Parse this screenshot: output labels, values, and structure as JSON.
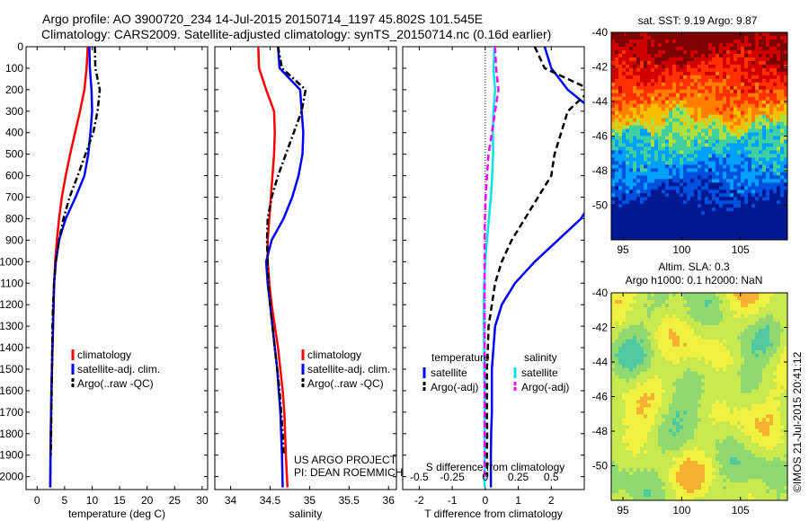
{
  "header": {
    "line1": "Argo profile: AO 3900720_234 14-Jul-2015 20150714_1197 45.802S 101.545E",
    "line2": "Climatology: CARS2009. Satellite-adjusted climatology: synTS_20150714.nc (0.16d earlier)"
  },
  "credit": {
    "line1": "US ARGO PROJECT",
    "line2": "PI: DEAN ROEMMICH"
  },
  "watermark": "©IMOS 21-Jul-2015 20:41:12",
  "colors": {
    "climatology": "#ff0000",
    "satellite": "#0000ff",
    "argo": "#000000",
    "sal_satellite": "#00e5e5",
    "sal_argo": "#ff00ff"
  },
  "chart_data": [
    {
      "type": "line",
      "xlabel": "temperature (deg C)",
      "ylabel": "",
      "xlim": [
        -2,
        31
      ],
      "ylim": [
        2060,
        0
      ],
      "xticks": [
        "0",
        "5",
        "10",
        "15",
        "20",
        "25",
        "30"
      ],
      "yticks": [
        "0",
        "100",
        "200",
        "300",
        "400",
        "500",
        "600",
        "700",
        "800",
        "900",
        "1000",
        "1100",
        "1200",
        "1300",
        "1400",
        "1500",
        "1600",
        "1700",
        "1800",
        "1900",
        "2000"
      ],
      "legend": {
        "placement": "bottom-right",
        "entries": [
          "climatology",
          "satellite-adj. clim.",
          "Argo(..raw -QC)"
        ]
      },
      "series": [
        {
          "name": "climatology",
          "color": "#ff0000",
          "style": "solid",
          "x": [
            9.2,
            9.0,
            8.6,
            7.8,
            6.9,
            6.0,
            5.2,
            4.5,
            4.0,
            3.6,
            3.3,
            3.1,
            3.0,
            2.9,
            2.8,
            2.7,
            2.6,
            2.55,
            2.5,
            2.45,
            2.4
          ],
          "y": [
            0,
            100,
            200,
            300,
            400,
            500,
            600,
            700,
            800,
            900,
            1000,
            1100,
            1200,
            1300,
            1400,
            1500,
            1600,
            1700,
            1800,
            1900,
            2050
          ]
        },
        {
          "name": "satellite-adj. clim.",
          "color": "#0000ff",
          "style": "solid",
          "x": [
            9.5,
            9.6,
            9.9,
            10.0,
            9.7,
            9.3,
            8.6,
            7.0,
            5.2,
            4.0,
            3.4,
            3.1,
            3.0,
            2.9,
            2.8,
            2.7,
            2.6,
            2.55,
            2.5,
            2.45,
            2.4
          ],
          "y": [
            0,
            100,
            200,
            300,
            400,
            500,
            600,
            700,
            800,
            900,
            1000,
            1100,
            1200,
            1300,
            1400,
            1500,
            1600,
            1700,
            1800,
            1900,
            2050
          ]
        },
        {
          "name": "Argo(..raw -QC)",
          "color": "#000000",
          "style": "dashdot",
          "x": [
            10.5,
            10.6,
            11.4,
            11.0,
            10.2,
            8.8,
            7.4,
            5.9,
            4.8,
            4.0,
            3.4,
            3.1,
            2.9,
            2.8,
            2.75,
            2.7,
            2.65,
            2.6,
            2.55,
            2.5
          ],
          "y": [
            0,
            100,
            200,
            300,
            400,
            500,
            600,
            700,
            800,
            900,
            1000,
            1100,
            1200,
            1300,
            1400,
            1500,
            1600,
            1700,
            1800,
            1900
          ]
        }
      ]
    },
    {
      "type": "line",
      "xlabel": "salinity",
      "ylabel": "",
      "xlim": [
        33.8,
        36.1
      ],
      "ylim": [
        2060,
        0
      ],
      "xticks": [
        "34",
        "34.5",
        "35",
        "35.5",
        "36"
      ],
      "legend": {
        "placement": "bottom-right",
        "entries": [
          "climatology",
          "satellite-adj. clim.",
          "Argo(..raw -QC)"
        ]
      },
      "series": [
        {
          "name": "climatology",
          "color": "#ff0000",
          "style": "solid",
          "x": [
            34.35,
            34.36,
            34.45,
            34.55,
            34.56,
            34.55,
            34.53,
            34.51,
            34.49,
            34.47,
            34.47,
            34.49,
            34.52,
            34.56,
            34.6,
            34.63,
            34.66,
            34.68,
            34.69,
            34.7,
            34.72
          ],
          "y": [
            0,
            100,
            200,
            300,
            400,
            500,
            600,
            700,
            800,
            900,
            1000,
            1100,
            1200,
            1300,
            1400,
            1500,
            1600,
            1700,
            1800,
            1900,
            2050
          ]
        },
        {
          "name": "satellite-adj. clim.",
          "color": "#0000ff",
          "style": "solid",
          "x": [
            34.6,
            34.62,
            34.88,
            34.9,
            34.92,
            34.91,
            34.86,
            34.78,
            34.67,
            34.52,
            34.45,
            34.47,
            34.5,
            34.53,
            34.56,
            34.59,
            34.61,
            34.63,
            34.64,
            34.65,
            34.66
          ],
          "y": [
            0,
            100,
            200,
            300,
            400,
            500,
            600,
            700,
            800,
            900,
            1000,
            1100,
            1200,
            1300,
            1400,
            1500,
            1600,
            1700,
            1800,
            1900,
            2050
          ]
        },
        {
          "name": "Argo(..raw -QC)",
          "color": "#000000",
          "style": "dashdot",
          "x": [
            34.6,
            34.65,
            34.95,
            34.9,
            34.8,
            34.7,
            34.6,
            34.52,
            34.47,
            34.46,
            34.47,
            34.48,
            34.5,
            34.53,
            34.56,
            34.59,
            34.62,
            34.64,
            34.66,
            34.67
          ],
          "y": [
            0,
            100,
            200,
            300,
            400,
            500,
            600,
            700,
            800,
            900,
            1000,
            1100,
            1200,
            1300,
            1400,
            1500,
            1600,
            1700,
            1800,
            1900
          ]
        }
      ]
    },
    {
      "type": "line",
      "xlabel": "T difference from climatology",
      "title": "S difference from climatology",
      "xlim": [
        -2.5,
        3.0
      ],
      "ylim": [
        2060,
        0
      ],
      "xticks": [
        "-2",
        "-1",
        "0",
        "1",
        "2"
      ],
      "xticks_top": [
        "-0.5",
        "-0.25",
        "0",
        "0.25",
        "0.5"
      ],
      "legend": {
        "placement": "bottom",
        "headers": [
          "temperature",
          "salinity"
        ],
        "entries": [
          "satellite",
          "Argo(-adj)",
          "satellite",
          "Argo(-adj)"
        ]
      },
      "series": [
        {
          "name": "temperature satellite",
          "color": "#0000ff",
          "style": "solid",
          "x": [
            1.8,
            2.0,
            2.5,
            3.3,
            4.0,
            4.3,
            3.8,
            3.3,
            2.9,
            2.2,
            1.5,
            0.9,
            0.5,
            0.3,
            0.25,
            0.2,
            0.2,
            0.2,
            0.18,
            0.17,
            0.17
          ],
          "y": [
            0,
            100,
            200,
            300,
            400,
            500,
            600,
            700,
            800,
            900,
            1000,
            1100,
            1200,
            1300,
            1400,
            1500,
            1600,
            1700,
            1800,
            1900,
            2050
          ]
        },
        {
          "name": "temperature Argo(-adj)",
          "color": "#000000",
          "style": "dashed",
          "x": [
            1.5,
            1.8,
            3.2,
            2.5,
            2.3,
            2.1,
            2.0,
            1.6,
            1.2,
            0.8,
            0.5,
            0.3,
            0.2,
            0.1,
            0.08,
            0.05,
            0.05,
            0.05,
            0.06,
            0.05,
            0.06
          ],
          "y": [
            0,
            100,
            200,
            300,
            400,
            500,
            600,
            700,
            800,
            900,
            1000,
            1100,
            1200,
            1300,
            1400,
            1500,
            1600,
            1700,
            1800,
            1900,
            2000
          ]
        },
        {
          "name": "salinity satellite",
          "color": "#00e5e5",
          "style": "solid",
          "x": [
            0.28,
            0.25,
            0.3,
            0.25,
            0.23,
            0.24,
            0.21,
            0.17,
            0.11,
            0.05,
            0.0,
            -0.03,
            -0.04,
            -0.04,
            -0.03,
            -0.03,
            -0.02,
            -0.02,
            -0.02,
            -0.02,
            -0.02
          ],
          "y": [
            0,
            100,
            200,
            300,
            400,
            500,
            600,
            700,
            800,
            900,
            1000,
            1100,
            1200,
            1300,
            1400,
            1500,
            1600,
            1700,
            1800,
            1900,
            2050
          ]
        },
        {
          "name": "salinity Argo(-adj)",
          "color": "#ff00ff",
          "style": "dashed",
          "x": [
            0.3,
            0.33,
            0.4,
            0.3,
            0.2,
            0.1,
            0.05,
            0.01,
            -0.01,
            -0.02,
            -0.02,
            -0.02,
            -0.02,
            -0.02,
            -0.02,
            -0.02,
            -0.02,
            -0.02,
            -0.02,
            -0.02,
            -0.02
          ],
          "y": [
            0,
            100,
            200,
            300,
            400,
            500,
            600,
            700,
            800,
            900,
            1000,
            1100,
            1200,
            1300,
            1400,
            1500,
            1600,
            1700,
            1800,
            1900,
            2000
          ]
        }
      ]
    },
    {
      "type": "heatmap",
      "title": "sat. SST: 9.19 Argo: 9.87",
      "xlim": [
        94,
        109
      ],
      "ylim": [
        -52,
        -40
      ],
      "xticks": [
        "95",
        "100",
        "105"
      ],
      "yticks": [
        "-40",
        "-42",
        "-44",
        "-46",
        "-48",
        "-50"
      ],
      "colors": [
        "#7f0000",
        "#d00000",
        "#ff3000",
        "#ff8000",
        "#f5c000",
        "#b0e040",
        "#40d0a0",
        "#00a0ff",
        "#0050e0",
        "#001890"
      ],
      "marker": {
        "x": 101.545,
        "y": -45.802
      }
    },
    {
      "type": "heatmap",
      "title": "Altim. SLA: 0.3",
      "subtitle": "Argo h1000: 0.1 h2000: NaN",
      "xlim": [
        94,
        109
      ],
      "ylim": [
        -52,
        -40
      ],
      "xticks": [
        "95",
        "100",
        "105"
      ],
      "yticks": [
        "-40",
        "-42",
        "-44",
        "-46",
        "-48",
        "-50"
      ],
      "colors": [
        "#50c8a0",
        "#90d870",
        "#c8e850",
        "#f0f040",
        "#f8b030"
      ],
      "marker": {
        "x": 101.545,
        "y": -45.802
      }
    }
  ]
}
